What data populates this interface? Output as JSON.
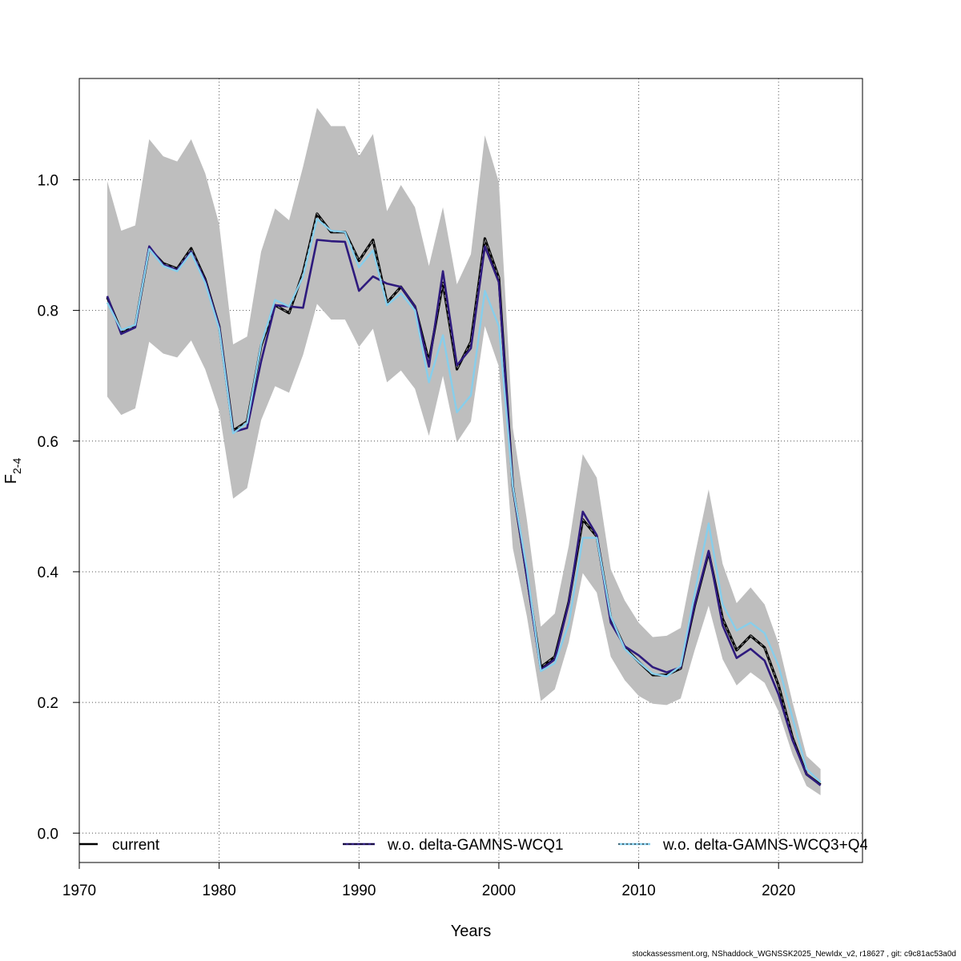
{
  "chart_data": {
    "type": "line",
    "xlabel": "Years",
    "ylabel": {
      "main": "F",
      "sub": "2-4"
    },
    "xlim": [
      1970,
      2026
    ],
    "ylim": [
      -0.045,
      1.155
    ],
    "xticks": [
      1970,
      1980,
      1990,
      2000,
      2010,
      2020
    ],
    "yticks": [
      0.0,
      0.2,
      0.4,
      0.6,
      0.8,
      1.0
    ],
    "grid": true,
    "legend_position": "bottom",
    "colors": {
      "band": "#bebebe",
      "current": "#000000",
      "wcq1": "#2e1a7d",
      "wcq3": "#87ceeb"
    },
    "x": [
      1972,
      1973,
      1974,
      1975,
      1976,
      1977,
      1978,
      1979,
      1980,
      1981,
      1982,
      1983,
      1984,
      1985,
      1986,
      1987,
      1988,
      1989,
      1990,
      1991,
      1992,
      1993,
      1994,
      1995,
      1996,
      1997,
      1998,
      1999,
      2000,
      2001,
      2002,
      2003,
      2004,
      2005,
      2006,
      2007,
      2008,
      2009,
      2010,
      2011,
      2012,
      2013,
      2014,
      2015,
      2016,
      2017,
      2018,
      2019,
      2020,
      2021,
      2022,
      2023
    ],
    "band_upper": [
      0.998,
      0.922,
      0.93,
      1.062,
      1.036,
      1.028,
      1.062,
      1.01,
      0.932,
      0.748,
      0.76,
      0.89,
      0.956,
      0.938,
      1.02,
      1.11,
      1.082,
      1.082,
      1.036,
      1.07,
      0.952,
      0.992,
      0.958,
      0.868,
      0.958,
      0.84,
      0.886,
      1.068,
      0.996,
      0.62,
      0.48,
      0.316,
      0.336,
      0.44,
      0.58,
      0.544,
      0.404,
      0.356,
      0.322,
      0.3,
      0.302,
      0.314,
      0.424,
      0.526,
      0.412,
      0.352,
      0.376,
      0.35,
      0.29,
      0.2,
      0.118,
      0.098
    ],
    "band_lower": [
      0.668,
      0.64,
      0.65,
      0.752,
      0.734,
      0.728,
      0.754,
      0.71,
      0.646,
      0.512,
      0.528,
      0.632,
      0.684,
      0.674,
      0.732,
      0.81,
      0.786,
      0.786,
      0.744,
      0.772,
      0.69,
      0.708,
      0.68,
      0.608,
      0.7,
      0.598,
      0.63,
      0.776,
      0.714,
      0.436,
      0.332,
      0.202,
      0.22,
      0.292,
      0.398,
      0.368,
      0.27,
      0.234,
      0.21,
      0.198,
      0.196,
      0.206,
      0.28,
      0.348,
      0.266,
      0.226,
      0.246,
      0.23,
      0.186,
      0.12,
      0.072,
      0.058
    ],
    "series": [
      {
        "name": "current",
        "values": [
          0.82,
          0.768,
          0.776,
          0.895,
          0.872,
          0.864,
          0.895,
          0.848,
          0.776,
          0.616,
          0.63,
          0.746,
          0.808,
          0.796,
          0.858,
          0.948,
          0.92,
          0.92,
          0.876,
          0.908,
          0.812,
          0.836,
          0.806,
          0.722,
          0.842,
          0.71,
          0.752,
          0.91,
          0.85,
          0.53,
          0.394,
          0.254,
          0.27,
          0.354,
          0.48,
          0.454,
          0.33,
          0.284,
          0.262,
          0.242,
          0.242,
          0.252,
          0.348,
          0.43,
          0.328,
          0.28,
          0.302,
          0.284,
          0.226,
          0.146,
          0.09,
          0.074
        ]
      },
      {
        "name": "w.o. delta-GAMNS-WCQ1",
        "values": [
          0.822,
          0.764,
          0.774,
          0.898,
          0.87,
          0.862,
          0.89,
          0.846,
          0.776,
          0.614,
          0.62,
          0.722,
          0.808,
          0.806,
          0.804,
          0.908,
          0.906,
          0.905,
          0.83,
          0.852,
          0.841,
          0.836,
          0.806,
          0.714,
          0.86,
          0.716,
          0.742,
          0.898,
          0.843,
          0.53,
          0.392,
          0.25,
          0.266,
          0.352,
          0.492,
          0.456,
          0.322,
          0.286,
          0.272,
          0.254,
          0.246,
          0.254,
          0.35,
          0.432,
          0.318,
          0.268,
          0.282,
          0.264,
          0.212,
          0.142,
          0.09,
          0.073
        ]
      },
      {
        "name": "w.o. delta-GAMNS-WCQ3+Q4",
        "values": [
          0.812,
          0.77,
          0.778,
          0.894,
          0.868,
          0.86,
          0.888,
          0.842,
          0.772,
          0.612,
          0.628,
          0.748,
          0.816,
          0.806,
          0.852,
          0.94,
          0.922,
          0.92,
          0.866,
          0.892,
          0.808,
          0.826,
          0.8,
          0.69,
          0.762,
          0.644,
          0.67,
          0.83,
          0.776,
          0.53,
          0.404,
          0.248,
          0.26,
          0.32,
          0.452,
          0.452,
          0.332,
          0.282,
          0.262,
          0.244,
          0.24,
          0.256,
          0.366,
          0.474,
          0.35,
          0.31,
          0.322,
          0.306,
          0.256,
          0.176,
          0.098,
          0.078
        ]
      }
    ]
  },
  "legend": {
    "current": "current",
    "wcq1": "w.o. delta-GAMNS-WCQ1",
    "wcq3": "w.o. delta-GAMNS-WCQ3+Q4"
  },
  "footer": "stockassessment.org, NShaddock_WGNSSK2025_NewIdx_v2, r18627 , git: c9c81ac53a0d"
}
